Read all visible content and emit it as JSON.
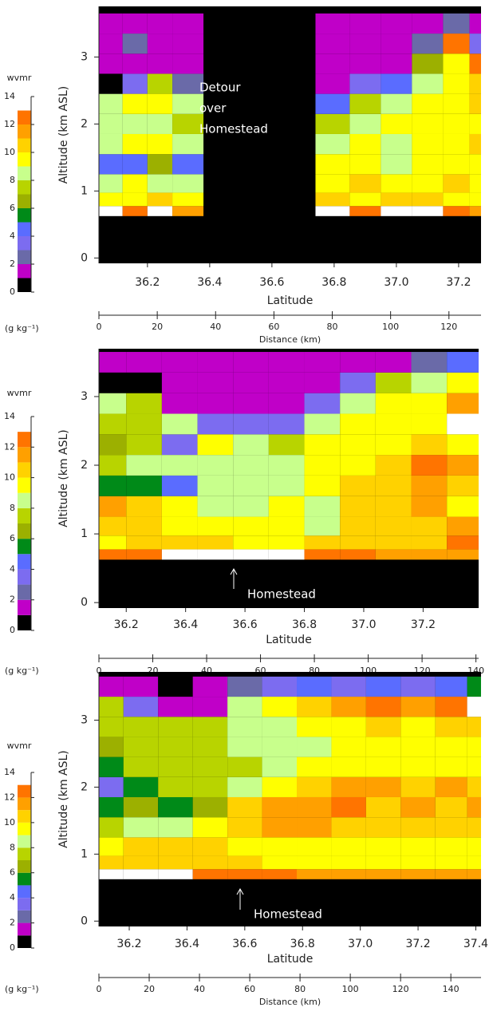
{
  "chart_data": [
    {
      "type": "contour",
      "xlabel": "Latitude",
      "ylabel": "Altitude (km ASL)",
      "xlim": [
        36.044,
        37.272
      ],
      "xticks": [
        36.2,
        36.4,
        36.6,
        36.8,
        {
          "value": 37,
          "label": "37.0"
        },
        37.2
      ],
      "ylim": [
        -0.08,
        3.72
      ],
      "yticks": [
        0,
        1,
        2,
        3
      ],
      "x2label": "Distance (km)",
      "x2lim": [
        0,
        131
      ],
      "x2ticks": [
        0,
        20,
        40,
        60,
        80,
        100,
        120
      ],
      "annotation": [
        "Detour",
        "over",
        "Homestead"
      ],
      "colorbar": {
        "label": "wvmr",
        "units": "(g kg⁻¹)",
        "lim": [
          0,
          14
        ],
        "ticks": [
          0,
          2,
          4,
          6,
          8,
          10,
          12,
          14
        ],
        "levels": [
          0,
          1,
          2,
          3,
          4,
          5,
          6,
          7,
          8,
          9,
          10,
          11,
          12,
          13
        ],
        "colors": [
          "#000000",
          "#c000c8",
          "#6a6aa8",
          "#7c6cf0",
          "#5a6cff",
          "#008a18",
          "#9cb000",
          "#b8d400",
          "#c8ff8c",
          "#ffff00",
          "#ffd200",
          "#ffa000",
          "#ff7400"
        ],
        "over_color": "#ffffff"
      },
      "x": [
        36.08,
        36.16,
        36.24,
        36.32,
        36.44,
        36.56,
        36.68,
        36.8,
        36.9,
        37.0,
        37.1,
        37.2,
        37.27
      ],
      "y": [
        0.7,
        0.85,
        1.1,
        1.4,
        1.7,
        2.0,
        2.3,
        2.6,
        2.9,
        3.2,
        3.5
      ],
      "values": [
        [
          14,
          12,
          13,
          11,
          null,
          null,
          null,
          13,
          12,
          14,
          13,
          12,
          11
        ],
        [
          9,
          9,
          10,
          9,
          null,
          null,
          null,
          10,
          9,
          10,
          10,
          9,
          9
        ],
        [
          8,
          9,
          8,
          8,
          null,
          null,
          null,
          9,
          10,
          9,
          9,
          10,
          9
        ],
        [
          4,
          4,
          6,
          4,
          null,
          null,
          null,
          9,
          9,
          8,
          9,
          9,
          9
        ],
        [
          8,
          9,
          9,
          8,
          null,
          null,
          null,
          8,
          9,
          8,
          9,
          9,
          10
        ],
        [
          8,
          8,
          8,
          7,
          null,
          null,
          null,
          7,
          8,
          9,
          9,
          9,
          9
        ],
        [
          8,
          9,
          9,
          8,
          null,
          null,
          null,
          4,
          7,
          8,
          9,
          9,
          10
        ],
        [
          0,
          3,
          7,
          2,
          null,
          null,
          null,
          1,
          3,
          4,
          8,
          9,
          10
        ],
        [
          1,
          1,
          1,
          1,
          null,
          null,
          null,
          1,
          1,
          1,
          6,
          9,
          12
        ],
        [
          1,
          2,
          1,
          1,
          null,
          null,
          null,
          1,
          1,
          1,
          2,
          12,
          3
        ],
        [
          1,
          1,
          1,
          1,
          null,
          null,
          null,
          1,
          1,
          1,
          1,
          2,
          1
        ]
      ]
    },
    {
      "type": "contour",
      "xlabel": "Latitude",
      "ylabel": "Altitude (km ASL)",
      "xlim": [
        36.108,
        37.387
      ],
      "xticks": [
        36.2,
        36.4,
        36.6,
        36.8,
        {
          "value": 37,
          "label": "37.0"
        },
        37.2
      ],
      "ylim": [
        -0.08,
        3.72
      ],
      "yticks": [
        0,
        1,
        2,
        3
      ],
      "x2label": "Distance (km)",
      "x2lim": [
        0,
        141
      ],
      "x2ticks": [
        0,
        20,
        40,
        60,
        80,
        100,
        120,
        140
      ],
      "annotation": [
        "Homestead"
      ],
      "colorbar": {
        "label": "wvmr",
        "units": "(g kg⁻¹)",
        "lim": [
          0,
          14
        ],
        "ticks": [
          0,
          2,
          4,
          6,
          8,
          10,
          12,
          14
        ],
        "levels": [
          0,
          1,
          2,
          3,
          4,
          5,
          6,
          7,
          8,
          9,
          10,
          11,
          12,
          13
        ],
        "colors": [
          "#000000",
          "#c000c8",
          "#6a6aa8",
          "#7c6cf0",
          "#5a6cff",
          "#008a18",
          "#9cb000",
          "#b8d400",
          "#c8ff8c",
          "#ffff00",
          "#ffd200",
          "#ffa000",
          "#ff7400"
        ],
        "over_color": "#ffffff"
      },
      "x": [
        36.14,
        36.26,
        36.38,
        36.5,
        36.62,
        36.74,
        36.86,
        36.98,
        37.1,
        37.22,
        37.34
      ],
      "y": [
        0.7,
        0.85,
        1.1,
        1.4,
        1.7,
        2.0,
        2.3,
        2.6,
        2.9,
        3.2,
        3.5
      ],
      "values": [
        [
          12,
          12,
          14,
          14,
          14,
          13,
          12,
          12,
          11,
          11,
          11
        ],
        [
          9,
          10,
          10,
          10,
          9,
          9,
          10,
          10,
          10,
          10,
          12
        ],
        [
          10,
          10,
          9,
          9,
          9,
          9,
          8,
          10,
          10,
          10,
          11
        ],
        [
          11,
          10,
          9,
          8,
          8,
          9,
          8,
          10,
          10,
          11,
          9
        ],
        [
          5,
          5,
          4,
          8,
          8,
          8,
          9,
          10,
          10,
          11,
          10
        ],
        [
          7,
          8,
          8,
          8,
          8,
          8,
          9,
          9,
          10,
          12,
          11
        ],
        [
          6,
          7,
          3,
          9,
          8,
          7,
          9,
          9,
          9,
          10,
          9
        ],
        [
          7,
          7,
          8,
          3,
          3,
          3,
          8,
          9,
          9,
          9,
          14
        ],
        [
          8,
          7,
          1,
          1,
          1,
          1,
          3,
          8,
          9,
          9,
          11
        ],
        [
          0,
          0,
          1,
          1,
          1,
          1,
          1,
          3,
          7,
          8,
          9
        ],
        [
          1,
          1,
          1,
          1,
          1,
          1,
          1,
          1,
          1,
          2,
          4
        ]
      ]
    },
    {
      "type": "contour",
      "xlabel": "Latitude",
      "ylabel": "Altitude (km ASL)",
      "xlim": [
        36.095,
        37.418
      ],
      "xticks": [
        36.2,
        36.4,
        36.6,
        36.8,
        {
          "value": 37,
          "label": "37.0"
        },
        37.2,
        37.4
      ],
      "ylim": [
        -0.08,
        3.72
      ],
      "yticks": [
        0,
        1,
        2,
        3
      ],
      "x2label": "Distance (km)",
      "x2lim": [
        0,
        152
      ],
      "x2ticks": [
        0,
        20,
        40,
        60,
        80,
        100,
        120,
        140
      ],
      "annotation": [
        "Homestead"
      ],
      "colorbar": {
        "label": "wvmr",
        "units": "(g kg⁻¹)",
        "lim": [
          0,
          14
        ],
        "ticks": [
          0,
          2,
          4,
          6,
          8,
          10,
          12,
          14
        ],
        "levels": [
          0,
          1,
          2,
          3,
          4,
          5,
          6,
          7,
          8,
          9,
          10,
          11,
          12,
          13
        ],
        "colors": [
          "#000000",
          "#c000c8",
          "#6a6aa8",
          "#7c6cf0",
          "#5a6cff",
          "#008a18",
          "#9cb000",
          "#b8d400",
          "#c8ff8c",
          "#ffff00",
          "#ffd200",
          "#ffa000",
          "#ff7400"
        ],
        "over_color": "#ffffff"
      },
      "x": [
        36.12,
        36.24,
        36.36,
        36.48,
        36.6,
        36.72,
        36.84,
        36.96,
        37.08,
        37.2,
        37.32,
        37.42
      ],
      "y": [
        0.7,
        0.85,
        1.1,
        1.4,
        1.7,
        2.0,
        2.3,
        2.6,
        2.9,
        3.2,
        3.5
      ],
      "values": [
        [
          13,
          13,
          13,
          12,
          12,
          12,
          11,
          11,
          11,
          11,
          11,
          11
        ],
        [
          10,
          10,
          10,
          10,
          10,
          9,
          9,
          9,
          9,
          9,
          9,
          9
        ],
        [
          9,
          10,
          10,
          10,
          9,
          9,
          9,
          9,
          9,
          9,
          9,
          9
        ],
        [
          7,
          8,
          8,
          9,
          10,
          11,
          11,
          10,
          10,
          10,
          10,
          10
        ],
        [
          5,
          6,
          5,
          6,
          10,
          11,
          11,
          12,
          10,
          11,
          10,
          11
        ],
        [
          3,
          5,
          7,
          7,
          8,
          9,
          10,
          11,
          11,
          10,
          11,
          10
        ],
        [
          5,
          7,
          7,
          7,
          7,
          8,
          9,
          9,
          9,
          9,
          9,
          9
        ],
        [
          6,
          7,
          7,
          7,
          8,
          8,
          8,
          9,
          9,
          9,
          9,
          9
        ],
        [
          7,
          7,
          7,
          7,
          8,
          8,
          9,
          9,
          10,
          9,
          10,
          10
        ],
        [
          7,
          3,
          1,
          1,
          8,
          9,
          10,
          11,
          12,
          11,
          12,
          13
        ],
        [
          1,
          1,
          0,
          1,
          2,
          3,
          4,
          3,
          4,
          3,
          4,
          5
        ]
      ]
    }
  ]
}
